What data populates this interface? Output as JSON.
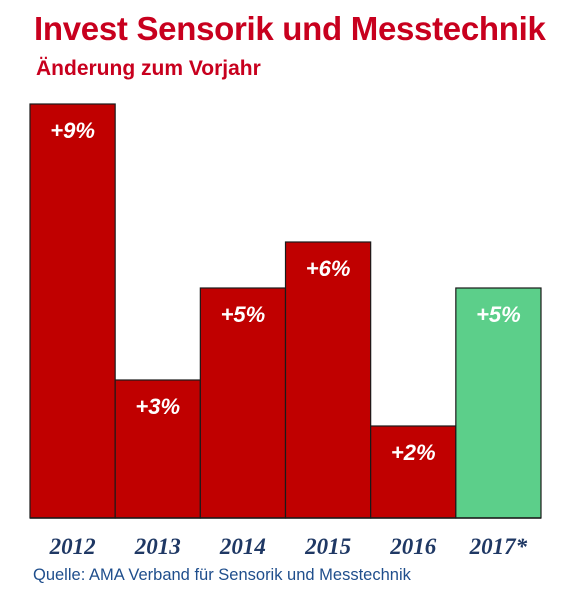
{
  "header": {
    "title": "Invest Sensorik und Messtechnik",
    "subtitle": "Änderung zum Vorjahr"
  },
  "footer": {
    "source": "Quelle: AMA Verband für Sensorik und Messtechnik"
  },
  "colors": {
    "title": "#c8001e",
    "bar": "#c00000",
    "bar_forecast": "#5ccf8a",
    "bar_label": "#ffffff",
    "axis_label": "#1f3864",
    "source": "#1f4e8c"
  },
  "chart_data": {
    "type": "bar",
    "title": "Invest Sensorik und Messtechnik",
    "subtitle": "Änderung zum Vorjahr",
    "xlabel": "",
    "ylabel": "",
    "categories": [
      "2012",
      "2013",
      "2014",
      "2015",
      "2016",
      "2017*"
    ],
    "values": [
      9,
      3,
      5,
      6,
      2,
      5
    ],
    "data_labels": [
      "+9%",
      "+3%",
      "+5%",
      "+6%",
      "+2%",
      "+5%"
    ],
    "forecast_index": 5,
    "ylim": [
      0,
      9
    ],
    "grid": false,
    "legend": "none"
  }
}
